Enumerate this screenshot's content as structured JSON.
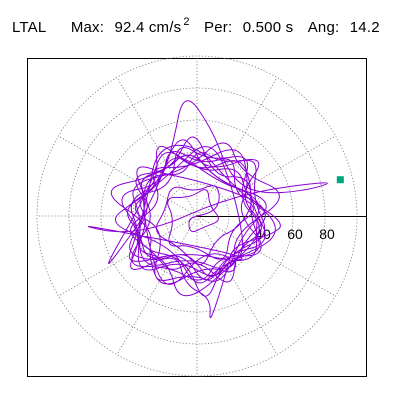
{
  "header": {
    "station": "LTAL",
    "max_label": "Max:",
    "max_value": "92.4 cm/s",
    "max_exp": "2",
    "per_label": "Per:",
    "per_value": "0.500 s",
    "ang_label": "Ang:",
    "ang_value": "14.2"
  },
  "chart_data": {
    "type": "scatter",
    "subtype": "polar particle-motion hodogram",
    "title": "",
    "xlabel": "",
    "ylabel": "",
    "rlim": [
      0,
      100
    ],
    "r_ticks": [
      20,
      40,
      60,
      80,
      100
    ],
    "r_tick_labels": [
      "40",
      "60",
      "80"
    ],
    "angle_grid_deg": [
      0,
      30,
      60,
      90,
      120,
      150,
      180,
      210,
      240,
      270,
      300,
      330
    ],
    "grid": true,
    "grid_style": "dotted",
    "max_point": {
      "r": 92.4,
      "angle_deg": 14.2
    },
    "trace_color": "#8b00d6",
    "marker_color": "#00a67e",
    "series": [
      {
        "values_r_theta": [
          [
            0,
            0
          ],
          [
            10,
            10
          ],
          [
            18,
            35
          ],
          [
            24,
            60
          ],
          [
            15,
            95
          ],
          [
            26,
            130
          ],
          [
            20,
            170
          ],
          [
            30,
            200
          ],
          [
            22,
            240
          ],
          [
            35,
            275
          ],
          [
            18,
            310
          ],
          [
            28,
            345
          ],
          [
            40,
            20
          ],
          [
            25,
            55
          ],
          [
            45,
            110
          ],
          [
            30,
            150
          ],
          [
            38,
            190
          ],
          [
            48,
            225
          ],
          [
            26,
            260
          ],
          [
            42,
            300
          ],
          [
            33,
            330
          ],
          [
            50,
            5
          ],
          [
            22,
            70
          ],
          [
            46,
            140
          ],
          [
            36,
            210
          ],
          [
            54,
            250
          ],
          [
            20,
            285
          ],
          [
            44,
            315
          ],
          [
            27,
            25
          ],
          [
            52,
            80
          ],
          [
            31,
            125
          ],
          [
            39,
            165
          ],
          [
            58,
            185
          ],
          [
            24,
            230
          ],
          [
            47,
            270
          ],
          [
            34,
            295
          ],
          [
            60,
            350
          ],
          [
            29,
            40
          ],
          [
            45,
            90
          ],
          [
            50,
            120
          ],
          [
            33,
            160
          ],
          [
            41,
            200
          ],
          [
            55,
            215
          ],
          [
            23,
            250
          ],
          [
            49,
            320
          ],
          [
            37,
            355
          ],
          [
            42,
            15
          ],
          [
            26,
            75
          ],
          [
            57,
            100
          ],
          [
            31,
            145
          ],
          [
            44,
            175
          ],
          [
            21,
            205
          ],
          [
            53,
            235
          ],
          [
            36,
            265
          ],
          [
            47,
            290
          ],
          [
            30,
            340
          ],
          [
            51,
            10
          ],
          [
            25,
            60
          ],
          [
            43,
            95
          ],
          [
            35,
            135
          ],
          [
            65,
            165
          ],
          [
            28,
            195
          ],
          [
            40,
            220
          ],
          [
            52,
            245
          ],
          [
            31,
            280
          ],
          [
            46,
            305
          ],
          [
            24,
            330
          ],
          [
            62,
            12
          ],
          [
            38,
            45
          ],
          [
            55,
            70
          ],
          [
            29,
            105
          ],
          [
            48,
            155
          ],
          [
            35,
            180
          ],
          [
            42,
            210
          ],
          [
            27,
            255
          ],
          [
            58,
            275
          ],
          [
            33,
            300
          ],
          [
            45,
            325
          ],
          [
            85,
            182
          ],
          [
            40,
            200
          ],
          [
            28,
            30
          ],
          [
            92.4,
            14.2
          ],
          [
            70,
            13
          ],
          [
            40,
            20
          ],
          [
            32,
            50
          ],
          [
            55,
            80
          ],
          [
            80,
            96
          ],
          [
            45,
            110
          ],
          [
            30,
            145
          ],
          [
            48,
            175
          ],
          [
            36,
            200
          ],
          [
            60,
            220
          ],
          [
            25,
            240
          ],
          [
            44,
            260
          ],
          [
            52,
            280
          ],
          [
            70,
            276
          ],
          [
            38,
            300
          ],
          [
            29,
            320
          ],
          [
            47,
            345
          ],
          [
            56,
            355
          ],
          [
            33,
            20
          ],
          [
            41,
            50
          ],
          [
            27,
            85
          ],
          [
            50,
            115
          ],
          [
            34,
            150
          ],
          [
            72,
            212
          ],
          [
            45,
            198
          ],
          [
            30,
            170
          ],
          [
            55,
            140
          ],
          [
            24,
            115
          ],
          [
            43,
            90
          ],
          [
            36,
            65
          ],
          [
            58,
            40
          ],
          [
            28,
            25
          ],
          [
            46,
            350
          ],
          [
            32,
            320
          ],
          [
            52,
            295
          ],
          [
            26,
            270
          ],
          [
            40,
            245
          ],
          [
            35,
            220
          ],
          [
            48,
            190
          ],
          [
            22,
            160
          ],
          [
            44,
            135
          ],
          [
            30,
            100
          ],
          [
            54,
            60
          ],
          [
            38,
            30
          ],
          [
            25,
            5
          ],
          [
            49,
            335
          ],
          [
            34,
            305
          ],
          [
            42,
            285
          ],
          [
            29,
            250
          ],
          [
            53,
            225
          ],
          [
            37,
            195
          ],
          [
            45,
            168
          ],
          [
            31,
            140
          ],
          [
            57,
            118
          ],
          [
            26,
            88
          ],
          [
            47,
            55
          ],
          [
            39,
            28
          ],
          [
            33,
            358
          ],
          [
            51,
            330
          ],
          [
            28,
            300
          ],
          [
            44,
            275
          ],
          [
            36,
            240
          ],
          [
            56,
            215
          ],
          [
            30,
            190
          ],
          [
            41,
            162
          ],
          [
            24,
            130
          ],
          [
            49,
            105
          ],
          [
            35,
            78
          ],
          [
            53,
            48
          ],
          [
            27,
            22
          ],
          [
            43,
            352
          ],
          [
            38,
            322
          ],
          [
            59,
            260
          ],
          [
            32,
            235
          ],
          [
            46,
            208
          ],
          [
            25,
            178
          ],
          [
            50,
            150
          ],
          [
            34,
            125
          ],
          [
            42,
            98
          ],
          [
            29,
            72
          ],
          [
            55,
            45
          ],
          [
            36,
            18
          ],
          [
            48,
            345
          ],
          [
            31,
            312
          ],
          [
            44,
            282
          ],
          [
            22,
            255
          ],
          [
            39,
            228
          ],
          [
            52,
            205
          ],
          [
            28,
            172
          ],
          [
            45,
            148
          ],
          [
            33,
            118
          ],
          [
            57,
            92
          ],
          [
            26,
            66
          ],
          [
            41,
            38
          ],
          [
            35,
            10
          ],
          [
            50,
            340
          ],
          [
            30,
            308
          ],
          [
            46,
            278
          ],
          [
            24,
            248
          ],
          [
            43,
            222
          ],
          [
            37,
            192
          ],
          [
            54,
            165
          ],
          [
            29,
            138
          ],
          [
            48,
            112
          ],
          [
            32,
            85
          ],
          [
            45,
            58
          ],
          [
            27,
            32
          ],
          [
            40,
            6
          ],
          [
            22,
            338
          ],
          [
            36,
            300
          ],
          [
            18,
            260
          ],
          [
            28,
            225
          ],
          [
            14,
            190
          ],
          [
            24,
            150
          ],
          [
            12,
            110
          ],
          [
            20,
            70
          ],
          [
            10,
            40
          ],
          [
            16,
            350
          ],
          [
            8,
            300
          ],
          [
            12,
            250
          ],
          [
            6,
            200
          ],
          [
            0,
            0
          ]
        ]
      }
    ]
  }
}
